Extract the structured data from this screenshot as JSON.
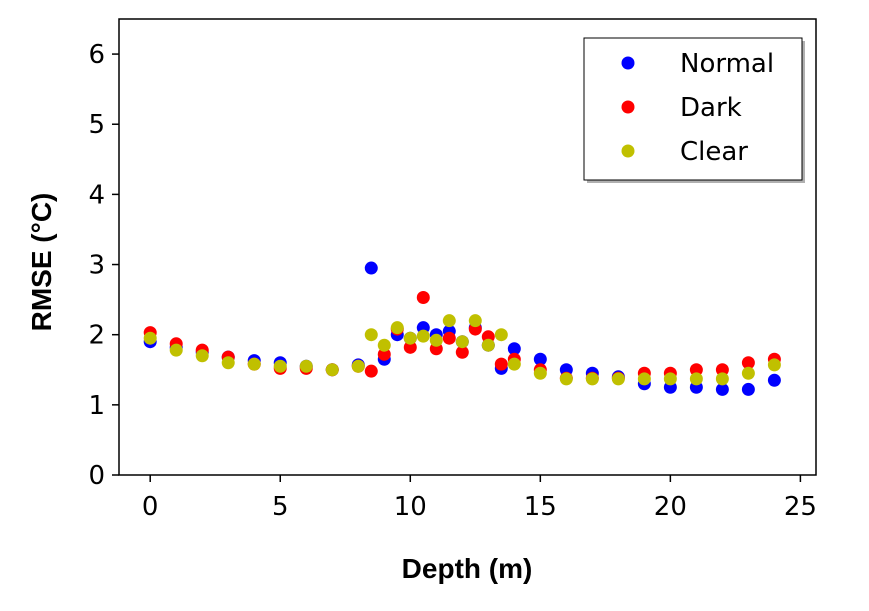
{
  "chart_data": {
    "type": "scatter",
    "xlabel": "Depth (m)",
    "ylabel": "RMSE (°C)",
    "xlim": [
      -1.2,
      25.6
    ],
    "ylim": [
      0,
      6.5
    ],
    "xticks": [
      0,
      5,
      10,
      15,
      20,
      25
    ],
    "yticks": [
      0,
      1,
      2,
      3,
      4,
      5,
      6
    ],
    "grid": false,
    "legend_position": "top-right",
    "series": [
      {
        "name": "Normal",
        "color": "#0000ff",
        "points": [
          [
            0,
            1.9
          ],
          [
            1,
            1.82
          ],
          [
            2,
            1.75
          ],
          [
            3,
            1.68
          ],
          [
            4,
            1.63
          ],
          [
            5,
            1.6
          ],
          [
            6,
            1.55
          ],
          [
            7,
            1.5
          ],
          [
            8,
            1.57
          ],
          [
            8.5,
            2.95
          ],
          [
            9,
            1.65
          ],
          [
            9.5,
            2.0
          ],
          [
            10,
            1.95
          ],
          [
            10.5,
            2.1
          ],
          [
            11,
            2.0
          ],
          [
            11.5,
            2.05
          ],
          [
            12,
            1.9
          ],
          [
            12.5,
            2.1
          ],
          [
            13,
            1.85
          ],
          [
            13.5,
            1.52
          ],
          [
            14,
            1.8
          ],
          [
            15,
            1.65
          ],
          [
            16,
            1.5
          ],
          [
            17,
            1.45
          ],
          [
            18,
            1.4
          ],
          [
            19,
            1.3
          ],
          [
            20,
            1.25
          ],
          [
            21,
            1.25
          ],
          [
            22,
            1.22
          ],
          [
            23,
            1.22
          ],
          [
            24,
            1.35
          ]
        ]
      },
      {
        "name": "Dark",
        "color": "#ff0000",
        "points": [
          [
            0,
            2.03
          ],
          [
            1,
            1.87
          ],
          [
            2,
            1.78
          ],
          [
            3,
            1.68
          ],
          [
            4,
            1.58
          ],
          [
            5,
            1.52
          ],
          [
            6,
            1.52
          ],
          [
            7,
            1.5
          ],
          [
            8,
            1.55
          ],
          [
            8.5,
            1.48
          ],
          [
            9,
            1.72
          ],
          [
            9.5,
            2.08
          ],
          [
            10,
            1.82
          ],
          [
            10.5,
            2.53
          ],
          [
            11,
            1.8
          ],
          [
            11.5,
            1.95
          ],
          [
            12,
            1.75
          ],
          [
            12.5,
            2.08
          ],
          [
            13,
            1.97
          ],
          [
            13.5,
            1.58
          ],
          [
            14,
            1.65
          ],
          [
            15,
            1.5
          ],
          [
            16,
            1.38
          ],
          [
            17,
            1.38
          ],
          [
            18,
            1.38
          ],
          [
            19,
            1.45
          ],
          [
            20,
            1.45
          ],
          [
            21,
            1.5
          ],
          [
            22,
            1.5
          ],
          [
            23,
            1.6
          ],
          [
            24,
            1.65
          ]
        ]
      },
      {
        "name": "Clear",
        "color": "#c0c000",
        "points": [
          [
            0,
            1.95
          ],
          [
            1,
            1.78
          ],
          [
            2,
            1.7
          ],
          [
            3,
            1.6
          ],
          [
            4,
            1.58
          ],
          [
            5,
            1.55
          ],
          [
            6,
            1.55
          ],
          [
            7,
            1.5
          ],
          [
            8,
            1.55
          ],
          [
            8.5,
            2.0
          ],
          [
            9,
            1.85
          ],
          [
            9.5,
            2.1
          ],
          [
            10,
            1.95
          ],
          [
            10.5,
            1.98
          ],
          [
            11,
            1.92
          ],
          [
            11.5,
            2.2
          ],
          [
            12,
            1.9
          ],
          [
            12.5,
            2.2
          ],
          [
            13,
            1.85
          ],
          [
            13.5,
            2.0
          ],
          [
            14,
            1.58
          ],
          [
            15,
            1.45
          ],
          [
            16,
            1.37
          ],
          [
            17,
            1.37
          ],
          [
            18,
            1.37
          ],
          [
            19,
            1.37
          ],
          [
            20,
            1.37
          ],
          [
            21,
            1.37
          ],
          [
            22,
            1.37
          ],
          [
            23,
            1.45
          ],
          [
            24,
            1.57
          ]
        ]
      }
    ]
  }
}
